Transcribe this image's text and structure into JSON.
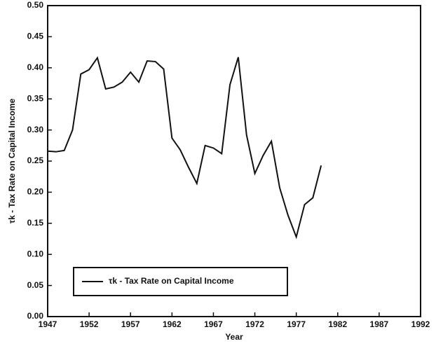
{
  "chart_data": {
    "type": "line",
    "xlabel": "Year",
    "ylabel": "τk - Tax Rate on Capital Income",
    "x": [
      1947,
      1948,
      1949,
      1950,
      1951,
      1952,
      1953,
      1954,
      1955,
      1956,
      1957,
      1958,
      1959,
      1960,
      1961,
      1962,
      1963,
      1964,
      1965,
      1966,
      1967,
      1968,
      1969,
      1970,
      1971,
      1972,
      1973,
      1974,
      1975,
      1976,
      1977,
      1978,
      1979,
      1980
    ],
    "series": [
      {
        "name": "τk - Tax Rate on Capital Income",
        "color": "#111111",
        "values": [
          0.266,
          0.265,
          0.267,
          0.3,
          0.39,
          0.397,
          0.416,
          0.366,
          0.369,
          0.377,
          0.393,
          0.377,
          0.411,
          0.41,
          0.398,
          0.287,
          0.268,
          0.24,
          0.214,
          0.275,
          0.271,
          0.262,
          0.373,
          0.417,
          0.292,
          0.23,
          0.259,
          0.282,
          0.207,
          0.163,
          0.128,
          0.18,
          0.191,
          0.243
        ]
      }
    ],
    "xlim": [
      1947,
      1992
    ],
    "xticks": [
      1947,
      1952,
      1957,
      1962,
      1967,
      1972,
      1977,
      1982,
      1987,
      1992
    ],
    "ylim": [
      0,
      0.5
    ],
    "yticks": [
      {
        "value": 0,
        "label": "0.00"
      },
      {
        "value": 0.05,
        "label": "0.05"
      },
      {
        "value": 0.1,
        "label": "0.10"
      },
      {
        "value": 0.15,
        "label": "0.15"
      },
      {
        "value": 0.2,
        "label": "0.20"
      },
      {
        "value": 0.25,
        "label": "0.25"
      },
      {
        "value": 0.3,
        "label": "0.30"
      },
      {
        "value": 0.35,
        "label": "0.35"
      },
      {
        "value": 0.4,
        "label": "0.40"
      },
      {
        "value": 0.45,
        "label": "0.45"
      },
      {
        "value": 0.5,
        "label": "0.50"
      }
    ],
    "legend": "lower left",
    "grid": false
  }
}
